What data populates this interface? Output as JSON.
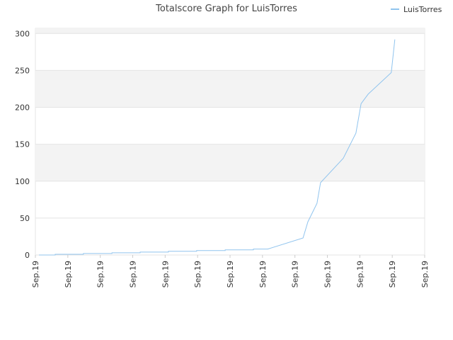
{
  "chart_data": {
    "type": "line",
    "title": "Totalscore Graph for LuisTorres",
    "x": [
      0.11,
      0.61,
      0.61,
      1.48,
      1.48,
      2.36,
      2.36,
      3.23,
      3.23,
      4.1,
      4.1,
      4.97,
      4.97,
      5.85,
      5.85,
      6.72,
      6.72,
      7.16,
      8.25,
      8.4,
      8.68,
      8.79,
      9.49,
      9.88,
      10.04,
      10.26,
      10.97,
      11.08
    ],
    "series": [
      {
        "name": "LuisTorres",
        "color": "#90c4ee",
        "values": [
          0,
          0,
          1,
          1,
          2,
          2,
          3,
          3,
          4,
          4,
          5,
          5,
          6,
          6,
          7,
          7,
          8,
          8,
          23,
          45,
          70,
          98,
          131,
          165,
          205,
          218,
          247,
          292
        ]
      }
    ],
    "xlim": [
      0,
      12
    ],
    "xticks": [
      {
        "value": 0,
        "label": "Sep.19"
      },
      {
        "value": 1,
        "label": "Sep.19"
      },
      {
        "value": 2,
        "label": "Sep.19"
      },
      {
        "value": 3,
        "label": "Sep.19"
      },
      {
        "value": 4,
        "label": "Sep.19"
      },
      {
        "value": 5,
        "label": "Sep.19"
      },
      {
        "value": 6,
        "label": "Sep.19"
      },
      {
        "value": 7,
        "label": "Sep.19"
      },
      {
        "value": 8,
        "label": "Sep.19"
      },
      {
        "value": 9,
        "label": "Sep.19"
      },
      {
        "value": 10,
        "label": "Sep.19"
      },
      {
        "value": 11,
        "label": "Sep.19"
      },
      {
        "value": 12,
        "label": "Sep.19"
      }
    ],
    "ylim": [
      0,
      307
    ],
    "yticks": [
      0,
      50,
      100,
      150,
      200,
      250,
      300
    ],
    "grid": true,
    "legend": "top-right"
  }
}
